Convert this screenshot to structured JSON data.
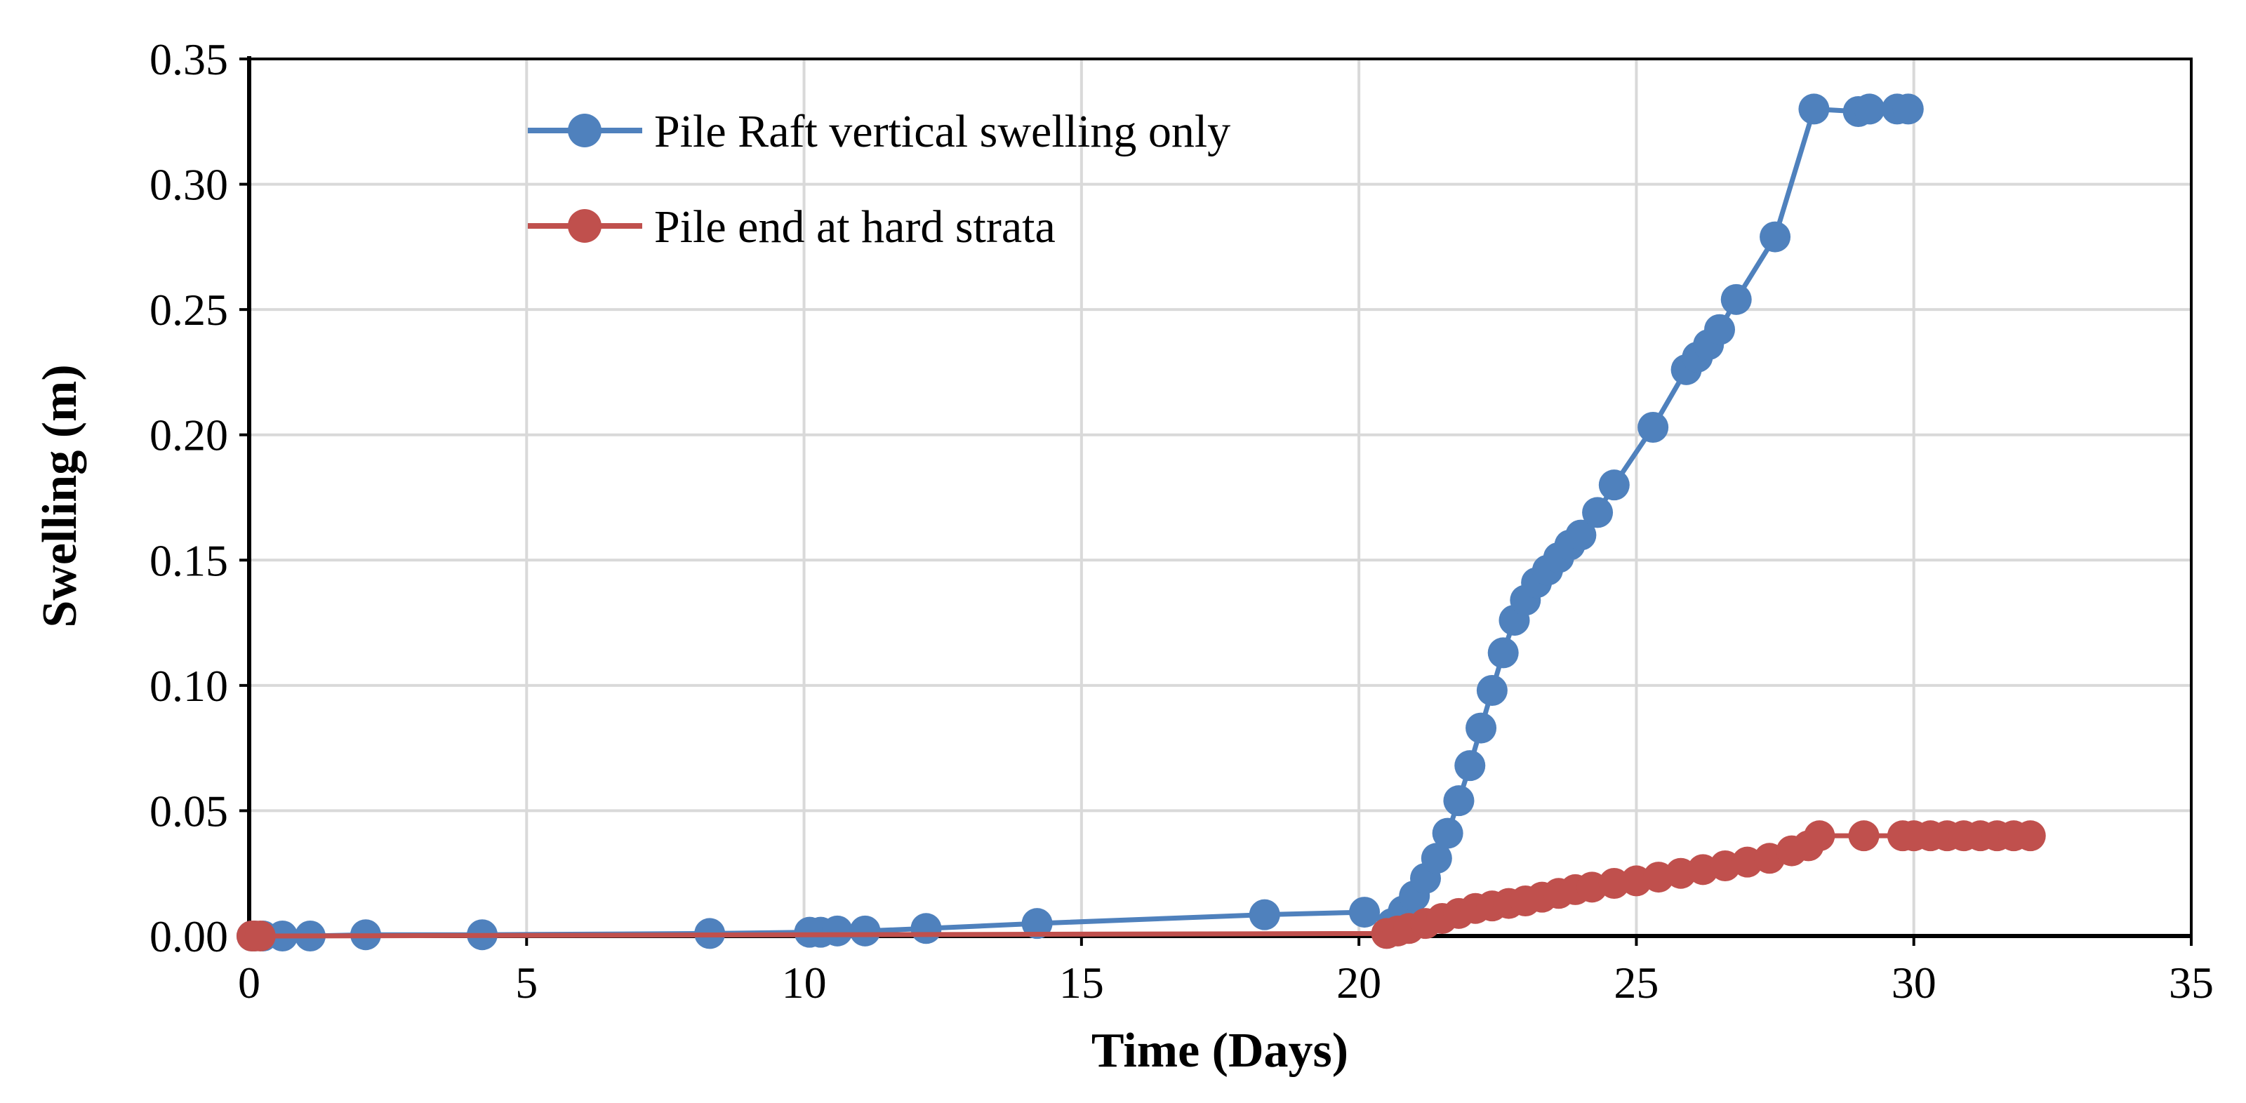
{
  "chart_data": {
    "type": "line",
    "title": "",
    "xlabel": "Time (Days)",
    "ylabel": "Swelling (m)",
    "xlim": [
      0,
      35
    ],
    "ylim": [
      0,
      0.35
    ],
    "xticks": [
      0,
      5,
      10,
      15,
      20,
      25,
      30,
      35
    ],
    "yticks": [
      0,
      0.05,
      0.1,
      0.15,
      0.2,
      0.25,
      0.3,
      0.35
    ],
    "xtick_labels": [
      "0",
      "5",
      "10",
      "15",
      "20",
      "25",
      "30",
      "35"
    ],
    "ytick_labels": [
      "0.00",
      "0.05",
      "0.10",
      "0.15",
      "0.20",
      "0.25",
      "0.30",
      "0.35"
    ],
    "grid": true,
    "legend_position": "top-left",
    "series": [
      {
        "name": "Pile Raft vertical swelling only",
        "color": "#4f81bd",
        "x": [
          0.05,
          0.1,
          0.25,
          0.6,
          1.1,
          2.1,
          4.2,
          8.3,
          10.1,
          10.3,
          10.6,
          11.1,
          12.2,
          14.2,
          18.3,
          20.1,
          20.6,
          20.8,
          21.0,
          21.2,
          21.4,
          21.6,
          21.8,
          22.0,
          22.2,
          22.4,
          22.6,
          22.8,
          23.0,
          23.2,
          23.4,
          23.6,
          23.8,
          24.0,
          24.3,
          24.6,
          25.3,
          25.9,
          26.1,
          26.3,
          26.5,
          26.8,
          27.5,
          28.2,
          29.0,
          29.2,
          29.7,
          29.9
        ],
        "y": [
          0,
          0,
          0,
          0,
          0,
          0.0005,
          0.0005,
          0.001,
          0.0015,
          0.0015,
          0.002,
          0.002,
          0.003,
          0.005,
          0.0085,
          0.0095,
          0.005,
          0.01,
          0.016,
          0.023,
          0.031,
          0.041,
          0.054,
          0.068,
          0.083,
          0.098,
          0.113,
          0.126,
          0.134,
          0.141,
          0.146,
          0.151,
          0.156,
          0.16,
          0.169,
          0.18,
          0.203,
          0.226,
          0.231,
          0.236,
          0.242,
          0.254,
          0.279,
          0.33,
          0.329,
          0.33,
          0.33,
          0.33
        ]
      },
      {
        "name": "Pile end at hard strata",
        "color": "#c0504d",
        "x": [
          0.05,
          0.1,
          0.2,
          20.5,
          20.7,
          20.9,
          21.2,
          21.5,
          21.8,
          22.1,
          22.4,
          22.7,
          23.0,
          23.3,
          23.6,
          23.9,
          24.2,
          24.6,
          25.0,
          25.4,
          25.8,
          26.2,
          26.6,
          27.0,
          27.4,
          27.8,
          28.1,
          28.3,
          29.1,
          29.8,
          30.0,
          30.3,
          30.6,
          30.9,
          31.2,
          31.5,
          31.8,
          32.1
        ],
        "y": [
          0,
          0,
          0,
          0.001,
          0.002,
          0.003,
          0.005,
          0.007,
          0.009,
          0.011,
          0.012,
          0.013,
          0.014,
          0.0155,
          0.017,
          0.0185,
          0.0195,
          0.021,
          0.022,
          0.0235,
          0.025,
          0.0265,
          0.028,
          0.0295,
          0.031,
          0.034,
          0.036,
          0.04,
          0.04,
          0.04,
          0.04,
          0.04,
          0.04,
          0.04,
          0.04,
          0.04,
          0.04,
          0.04
        ]
      }
    ]
  }
}
